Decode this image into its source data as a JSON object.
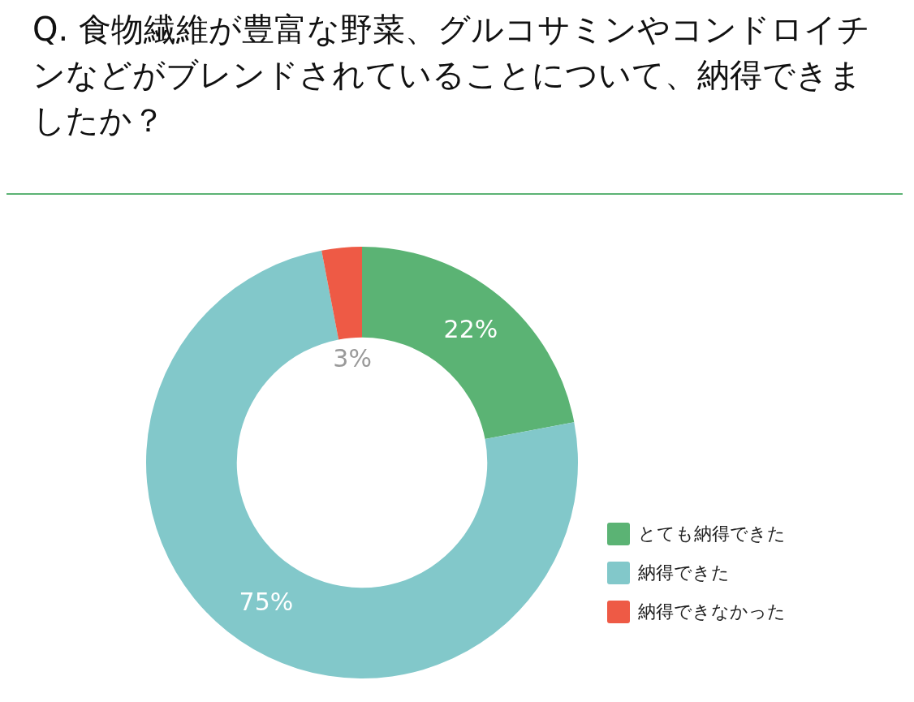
{
  "chart_data": {
    "type": "donut",
    "title": "Q. 食物繊維が豊富な野菜、グルコサミンやコンドロイチンなどがブレンドされていることについて、納得できましたか？",
    "categories": [
      "とても納得できた",
      "納得できた",
      "納得できなかった"
    ],
    "values": [
      22,
      75,
      3
    ],
    "colors": [
      "#5bb374",
      "#82c8ca",
      "#ee5a45"
    ],
    "value_labels": [
      "22%",
      "75%",
      "3%"
    ],
    "legend": "bottom right"
  }
}
